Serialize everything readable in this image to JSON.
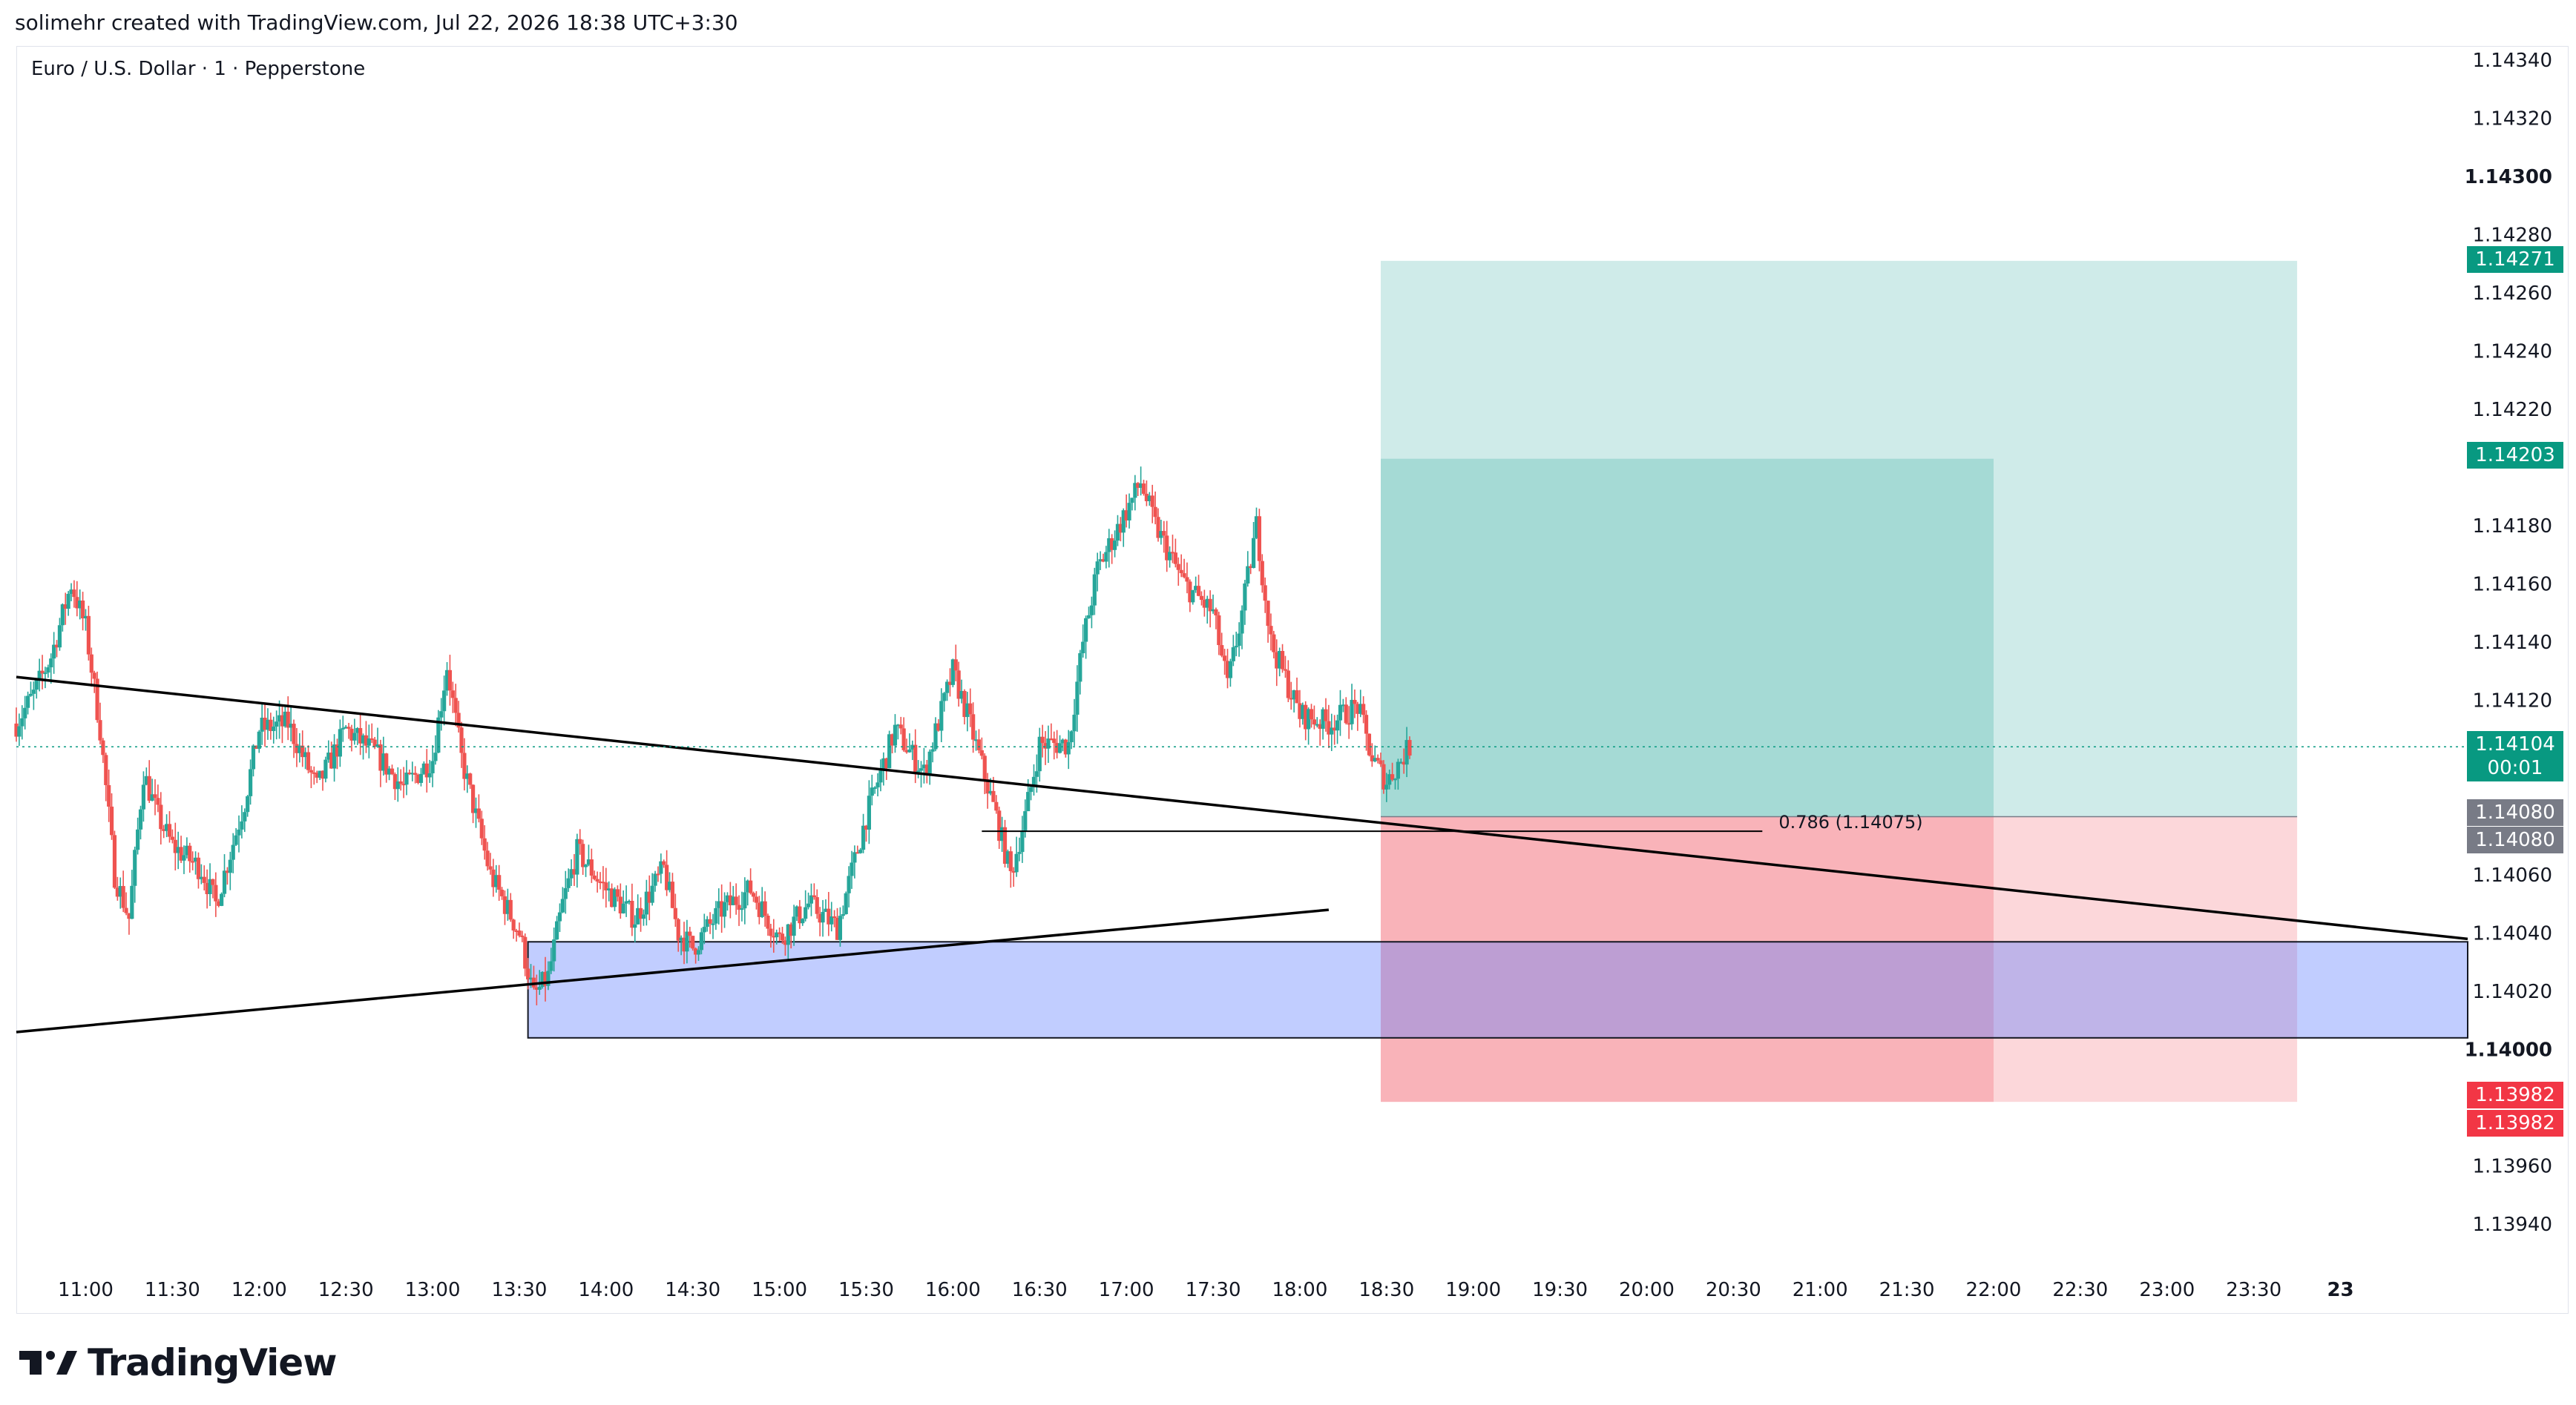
{
  "header": {
    "attribution": "solimehr created with TradingView.com, Jul 22, 2026 18:38 UTC+3:30"
  },
  "symbol_title": "Euro / U.S. Dollar · 1 · Pepperstone",
  "brand": {
    "name": "TradingView",
    "icon": "tradingview-logo-icon"
  },
  "colors": {
    "up": "#26a69a",
    "down": "#ef5350",
    "target_zone": "#26a69a",
    "stop_zone": "#f23645",
    "demand_zone": "#5b7cff",
    "price_line": "#089981"
  },
  "price_labels": {
    "target_1": "1.14271",
    "target_2": "1.14203",
    "last_price": "1.14104",
    "countdown": "00:01",
    "entry_1": "1.14080",
    "entry_2": "1.14080",
    "stop_1": "1.13982",
    "stop_2": "1.13982"
  },
  "annotations": {
    "fib_label": "0.786 (1.14075)"
  },
  "chart_data": {
    "type": "candlestick",
    "symbol": "Euro / U.S. Dollar",
    "interval": "1",
    "source": "Pepperstone",
    "y_axis": {
      "ticks": [
        "1.14340",
        "1.14320",
        "1.14300",
        "1.14280",
        "1.14260",
        "1.14240",
        "1.14220",
        "1.14180",
        "1.14160",
        "1.14140",
        "1.14120",
        "1.14060",
        "1.14040",
        "1.14020",
        "1.14000",
        "1.13960",
        "1.13940"
      ],
      "bold_ticks": [
        "1.14300",
        "1.14000"
      ],
      "range": [
        1.13925,
        1.1435
      ]
    },
    "x_axis": {
      "ticks": [
        "11:00",
        "11:30",
        "12:00",
        "12:30",
        "13:00",
        "13:30",
        "14:00",
        "14:30",
        "15:00",
        "15:30",
        "16:00",
        "16:30",
        "17:00",
        "17:30",
        "18:00",
        "18:30",
        "19:00",
        "19:30",
        "20:00",
        "20:30",
        "21:00",
        "21:30",
        "22:00",
        "22:30",
        "23:00",
        "23:30",
        "23"
      ],
      "range": [
        "10:36",
        "24:44"
      ]
    },
    "waypoints": [
      {
        "t": "10:36",
        "p": 1.14112
      },
      {
        "t": "10:42",
        "p": 1.14122
      },
      {
        "t": "10:48",
        "p": 1.14135
      },
      {
        "t": "10:55",
        "p": 1.1416
      },
      {
        "t": "11:00",
        "p": 1.14145
      },
      {
        "t": "11:05",
        "p": 1.1411
      },
      {
        "t": "11:10",
        "p": 1.1406
      },
      {
        "t": "11:15",
        "p": 1.14045
      },
      {
        "t": "11:20",
        "p": 1.14095
      },
      {
        "t": "11:25",
        "p": 1.1408
      },
      {
        "t": "11:30",
        "p": 1.1407
      },
      {
        "t": "11:40",
        "p": 1.14062
      },
      {
        "t": "11:45",
        "p": 1.1405
      },
      {
        "t": "11:55",
        "p": 1.14085
      },
      {
        "t": "12:00",
        "p": 1.1411
      },
      {
        "t": "12:10",
        "p": 1.14112
      },
      {
        "t": "12:20",
        "p": 1.1409
      },
      {
        "t": "12:30",
        "p": 1.1411
      },
      {
        "t": "12:40",
        "p": 1.14102
      },
      {
        "t": "12:50",
        "p": 1.1409
      },
      {
        "t": "13:00",
        "p": 1.141
      },
      {
        "t": "13:05",
        "p": 1.14132
      },
      {
        "t": "13:10",
        "p": 1.141
      },
      {
        "t": "13:15",
        "p": 1.1408
      },
      {
        "t": "13:20",
        "p": 1.1406
      },
      {
        "t": "13:30",
        "p": 1.1404
      },
      {
        "t": "13:35",
        "p": 1.14018
      },
      {
        "t": "13:40",
        "p": 1.14025
      },
      {
        "t": "13:45",
        "p": 1.1405
      },
      {
        "t": "13:50",
        "p": 1.14068
      },
      {
        "t": "14:00",
        "p": 1.14055
      },
      {
        "t": "14:10",
        "p": 1.14045
      },
      {
        "t": "14:20",
        "p": 1.14062
      },
      {
        "t": "14:25",
        "p": 1.1404
      },
      {
        "t": "14:30",
        "p": 1.14035
      },
      {
        "t": "14:40",
        "p": 1.14048
      },
      {
        "t": "14:50",
        "p": 1.14055
      },
      {
        "t": "15:00",
        "p": 1.14038
      },
      {
        "t": "15:10",
        "p": 1.1405
      },
      {
        "t": "15:20",
        "p": 1.14042
      },
      {
        "t": "15:30",
        "p": 1.1408
      },
      {
        "t": "15:40",
        "p": 1.1411
      },
      {
        "t": "15:50",
        "p": 1.14095
      },
      {
        "t": "16:00",
        "p": 1.1413
      },
      {
        "t": "16:05",
        "p": 1.14115
      },
      {
        "t": "16:15",
        "p": 1.1408
      },
      {
        "t": "16:20",
        "p": 1.1406
      },
      {
        "t": "16:25",
        "p": 1.1408
      },
      {
        "t": "16:30",
        "p": 1.14105
      },
      {
        "t": "16:40",
        "p": 1.14105
      },
      {
        "t": "16:45",
        "p": 1.1414
      },
      {
        "t": "16:50",
        "p": 1.14165
      },
      {
        "t": "17:00",
        "p": 1.14185
      },
      {
        "t": "17:05",
        "p": 1.14195
      },
      {
        "t": "17:10",
        "p": 1.1418
      },
      {
        "t": "17:20",
        "p": 1.1416
      },
      {
        "t": "17:30",
        "p": 1.1415
      },
      {
        "t": "17:35",
        "p": 1.14125
      },
      {
        "t": "17:40",
        "p": 1.1415
      },
      {
        "t": "17:45",
        "p": 1.1418
      },
      {
        "t": "17:50",
        "p": 1.1414
      },
      {
        "t": "18:00",
        "p": 1.14115
      },
      {
        "t": "18:10",
        "p": 1.14112
      },
      {
        "t": "18:20",
        "p": 1.14118
      },
      {
        "t": "18:25",
        "p": 1.141
      },
      {
        "t": "18:30",
        "p": 1.14092
      },
      {
        "t": "18:38",
        "p": 1.14104
      }
    ],
    "trendlines": [
      {
        "name": "descending",
        "from": {
          "t": "10:36",
          "p": 1.14128
        },
        "to": {
          "t": "24:44",
          "p": 1.14038
        }
      },
      {
        "name": "ascending",
        "from": {
          "t": "10:36",
          "p": 1.14006
        },
        "to": {
          "t": "18:10",
          "p": 1.14048
        }
      }
    ],
    "zones": {
      "demand": {
        "from": "13:33",
        "to": "24:44",
        "top": 1.14037,
        "bottom": 1.14004
      },
      "position_near": {
        "from": "18:28",
        "to": "22:00",
        "entry": 1.1408,
        "target": 1.14203,
        "stop": 1.13982
      },
      "position_far": {
        "from": "22:00",
        "to": "23:45",
        "entry": 1.1408,
        "target": 1.14271,
        "stop": 1.13982
      }
    },
    "fib_level": {
      "ratio": 0.786,
      "price": 1.14075,
      "from": "16:10",
      "to": "20:40"
    },
    "last_price": 1.14104
  }
}
